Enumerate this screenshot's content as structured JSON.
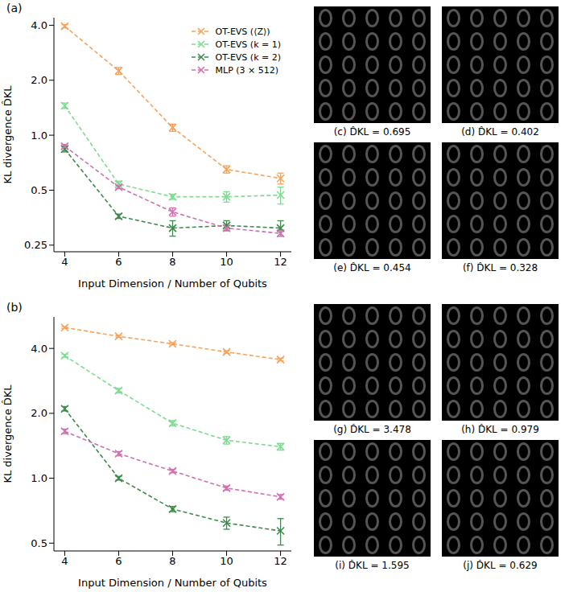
{
  "chart_data": [
    {
      "type": "line",
      "panel_label": "(a)",
      "x_label": "Input Dimension / Number of Qubits",
      "y_label": "KL divergence D̂KL",
      "log": "y",
      "legend": "upper right",
      "marker": "x",
      "line_style": "dashed",
      "x": [
        4,
        6,
        8,
        10,
        12
      ],
      "xlim": [
        3.6,
        12.4
      ],
      "xticks": [
        4,
        6,
        8,
        10,
        12
      ],
      "ylim": [
        0.23,
        4.4
      ],
      "yticks": [
        0.25,
        0.5,
        {
          "value": 1,
          "label": "1.0"
        },
        {
          "value": 2,
          "label": "2.0"
        },
        {
          "value": 4,
          "label": "4.0"
        }
      ],
      "series": [
        {
          "name": "OT-EVS (⟨Z⟩)",
          "color": "#f5a35c",
          "values": [
            3.95,
            2.25,
            1.1,
            0.65,
            0.58
          ],
          "errors": [
            0.08,
            0.1,
            0.05,
            0.03,
            0.04
          ]
        },
        {
          "name": "OT-EVS (k = 1)",
          "color": "#7fdc8f",
          "values": [
            1.45,
            0.54,
            0.46,
            0.46,
            0.47
          ],
          "errors": [
            0.05,
            0.02,
            0.015,
            0.03,
            0.05
          ]
        },
        {
          "name": "OT-EVS (k = 2)",
          "color": "#3d8b4a",
          "values": [
            0.84,
            0.36,
            0.31,
            0.32,
            0.31
          ],
          "errors": [
            0.03,
            0.01,
            0.03,
            0.02,
            0.03
          ]
        },
        {
          "name": "MLP (3 × 512)",
          "color": "#d070b0",
          "values": [
            0.87,
            0.52,
            0.38,
            0.31,
            0.29
          ],
          "errors": [
            0.02,
            0.01,
            0.02,
            0.01,
            0.01
          ]
        }
      ]
    },
    {
      "type": "line",
      "panel_label": "(b)",
      "x_label": "Input Dimension / Number of Qubits",
      "y_label": "KL divergence D̂KL",
      "log": "y",
      "marker": "x",
      "line_style": "dashed",
      "x": [
        4,
        6,
        8,
        10,
        12
      ],
      "xlim": [
        3.6,
        12.4
      ],
      "xticks": [
        4,
        6,
        8,
        10,
        12
      ],
      "ylim": [
        0.46,
        5.6
      ],
      "yticks": [
        0.5,
        {
          "value": 1,
          "label": "1.0"
        },
        {
          "value": 2,
          "label": "2.0"
        },
        {
          "value": 4,
          "label": "4.0"
        }
      ],
      "series": [
        {
          "name": "OT-EVS (⟨Z⟩)",
          "color": "#f5a35c",
          "values": [
            5.0,
            4.55,
            4.2,
            3.85,
            3.55
          ],
          "errors": [
            0.05,
            0.05,
            0.05,
            0.05,
            0.05
          ]
        },
        {
          "name": "OT-EVS (k = 1)",
          "color": "#7fdc8f",
          "values": [
            3.7,
            2.55,
            1.8,
            1.5,
            1.4
          ],
          "errors": [
            0.06,
            0.06,
            0.05,
            0.06,
            0.05
          ]
        },
        {
          "name": "OT-EVS (k = 2)",
          "color": "#3d8b4a",
          "values": [
            2.1,
            1.0,
            0.72,
            0.62,
            0.57
          ],
          "errors": [
            0.05,
            0.02,
            0.02,
            0.04,
            0.08
          ]
        },
        {
          "name": "MLP (3 × 512)",
          "color": "#d070b0",
          "values": [
            1.65,
            1.3,
            1.08,
            0.9,
            0.82
          ],
          "errors": [
            0.04,
            0.03,
            0.02,
            0.02,
            0.02
          ]
        }
      ]
    }
  ],
  "image_panels": [
    {
      "caption": "(c) D̂KL = 0.695"
    },
    {
      "caption": "(d) D̂KL = 0.402"
    },
    {
      "caption": "(e) D̂KL = 0.454"
    },
    {
      "caption": "(f) D̂KL = 0.328"
    },
    {
      "caption": "(g) D̂KL = 3.478"
    },
    {
      "caption": "(h) D̂KL = 0.979"
    },
    {
      "caption": "(i) D̂KL = 1.595"
    },
    {
      "caption": "(j) D̂KL = 0.629"
    }
  ]
}
